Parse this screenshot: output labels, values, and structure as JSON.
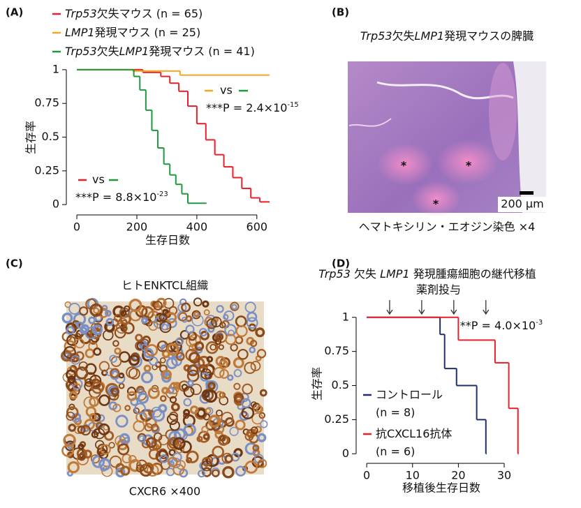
{
  "panels": {
    "A": {
      "label": "(A)"
    },
    "B": {
      "label": "(B)",
      "title": [
        {
          "text": "Trp53",
          "italic": true
        },
        {
          "text": "欠失"
        },
        {
          "text": "LMP1",
          "italic": true
        },
        {
          "text": "発現マウスの脾臓"
        }
      ],
      "scale_bar": "200 µm",
      "markers": [
        "*",
        "*",
        "*"
      ],
      "caption": "ヘマトキシリン・エオジン染色 ×4"
    },
    "C": {
      "label": "(C)",
      "title": "ヒトENKTCL組織",
      "caption": "CXCR6 ×400"
    },
    "D": {
      "label": "(D)",
      "title": [
        {
          "text": "Trp53",
          "italic": true
        },
        {
          "text": " 欠失 "
        },
        {
          "text": "LMP1",
          "italic": true
        },
        {
          "text": " 発現腫瘍細胞の継代移植"
        }
      ],
      "subtitle": "薬剤投与"
    }
  },
  "chart_data": [
    {
      "type": "step",
      "xlabel": "生存日数",
      "ylabel": "生存率",
      "xlim": [
        -28,
        640
      ],
      "ylim": [
        -0.03,
        1.02
      ],
      "xticks": [
        0,
        200,
        400,
        600
      ],
      "yticks": [
        0,
        0.25,
        0.5,
        0.75,
        1
      ],
      "series": [
        {
          "name": [
            {
              "text": "Trp53",
              "italic": true
            },
            {
              "text": "欠失マウス (n = 65)"
            }
          ],
          "color": "#e8202a",
          "x": [
            0,
            170,
            220,
            280,
            310,
            340,
            370,
            400,
            430,
            460,
            490,
            520,
            550,
            580,
            610,
            640
          ],
          "values": [
            1,
            1,
            0.98,
            0.95,
            0.9,
            0.84,
            0.73,
            0.6,
            0.48,
            0.37,
            0.28,
            0.2,
            0.12,
            0.05,
            0.02,
            0.02
          ]
        },
        {
          "name": [
            {
              "text": "LMP1",
              "italic": true
            },
            {
              "text": "発現マウス (n = 25)"
            }
          ],
          "color": "#f2a81d",
          "x": [
            0,
            186,
            344,
            640
          ],
          "values": [
            1,
            0.99,
            0.96,
            0.96
          ]
        },
        {
          "name": [
            {
              "text": "Trp53",
              "italic": true
            },
            {
              "text": "欠失"
            },
            {
              "text": "LMP1",
              "italic": true
            },
            {
              "text": "発現マウス (n = 41)"
            }
          ],
          "color": "#1e9a3c",
          "x": [
            0,
            175,
            190,
            210,
            230,
            250,
            270,
            290,
            310,
            330,
            350,
            370,
            430
          ],
          "values": [
            1,
            1,
            0.95,
            0.85,
            0.7,
            0.55,
            0.42,
            0.3,
            0.22,
            0.15,
            0.08,
            0.01,
            0.01
          ]
        }
      ],
      "comparisons": [
        {
          "label": "vs",
          "p": [
            {
              "text": "***P = 2.4×10"
            },
            {
              "text": "-15",
              "sup": true
            }
          ]
        },
        {
          "label": "vs",
          "p": [
            {
              "text": "***P = 8.8×10"
            },
            {
              "text": "-23",
              "sup": true
            }
          ]
        }
      ]
    },
    {
      "type": "step",
      "xlabel": "移植後生存日数",
      "ylabel": "生存率",
      "xlim": [
        -2,
        33.5
      ],
      "ylim": [
        -0.06,
        1.05
      ],
      "xticks": [
        0,
        10,
        20,
        30
      ],
      "yticks": [
        0,
        0.25,
        0.5,
        0.75,
        1
      ],
      "dosing_days": [
        5,
        12,
        19,
        26
      ],
      "series": [
        {
          "name": [
            {
              "text": "コントロール"
            }
          ],
          "sublabel": "(n = 8)",
          "color": "#1f2f6e",
          "x": [
            0,
            16,
            17,
            19.6,
            24,
            26
          ],
          "values": [
            1,
            0.875,
            0.625,
            0.5,
            0.25,
            0
          ]
        },
        {
          "name": [
            {
              "text": "抗CXCL16抗体"
            }
          ],
          "sublabel": "(n = 6)",
          "color": "#e8202a",
          "x": [
            0,
            20,
            28,
            31,
            33
          ],
          "values": [
            1,
            0.833,
            0.667,
            0.333,
            0
          ]
        }
      ],
      "comparisons": [
        {
          "p": [
            {
              "text": "**P = 4.0×10"
            },
            {
              "text": "-3",
              "sup": true
            }
          ]
        }
      ]
    }
  ]
}
